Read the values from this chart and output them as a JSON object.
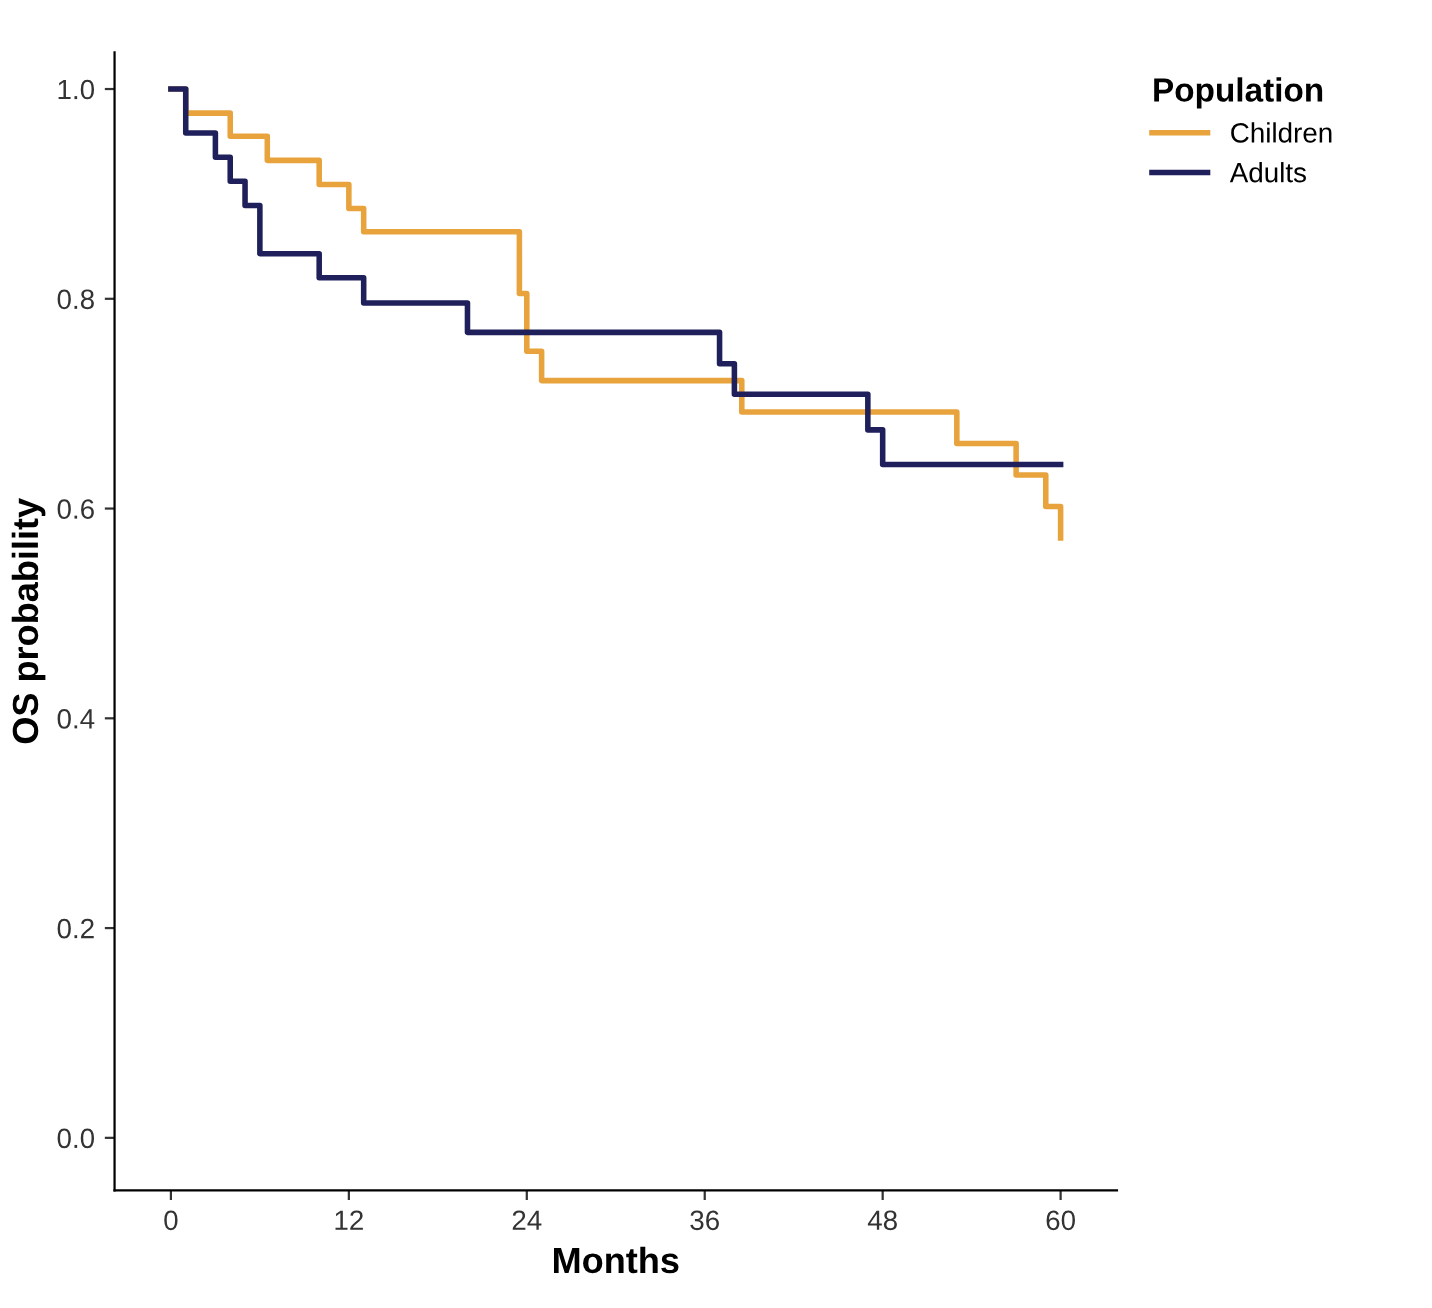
{
  "chart_data": {
    "type": "step",
    "xlabel": "Months",
    "ylabel": "OS probability",
    "legend_title": "Population",
    "xlim": [
      -3.8,
      63.8
    ],
    "ylim": [
      -0.05,
      1.035
    ],
    "xticks": [
      0,
      12,
      24,
      36,
      48,
      60
    ],
    "yticks": [
      {
        "value": 0,
        "label": "0.0"
      },
      0.2,
      0.4,
      0.6,
      0.8,
      {
        "value": 1,
        "label": "1.0"
      }
    ],
    "grid": false,
    "legend": "top right",
    "marker": "none",
    "line_style": "solid",
    "series": [
      {
        "name": "Children",
        "color": "#e8a33d",
        "x": [
          0,
          1,
          4,
          6.5,
          10,
          12,
          13,
          23.5,
          24,
          25,
          38.5,
          53,
          57,
          59,
          60
        ],
        "values": [
          1.0,
          0.977,
          0.955,
          0.932,
          0.909,
          0.886,
          0.864,
          0.805,
          0.75,
          0.722,
          0.692,
          0.662,
          0.632,
          0.602,
          0.572
        ]
      },
      {
        "name": "Adults",
        "color": "#1f1f5c",
        "x": [
          0,
          1,
          3,
          4,
          5,
          6,
          10,
          13,
          20,
          37,
          38,
          47,
          48,
          60
        ],
        "values": [
          1.0,
          0.958,
          0.935,
          0.912,
          0.889,
          0.843,
          0.82,
          0.796,
          0.768,
          0.738,
          0.709,
          0.675,
          0.642,
          0.642
        ]
      }
    ]
  }
}
